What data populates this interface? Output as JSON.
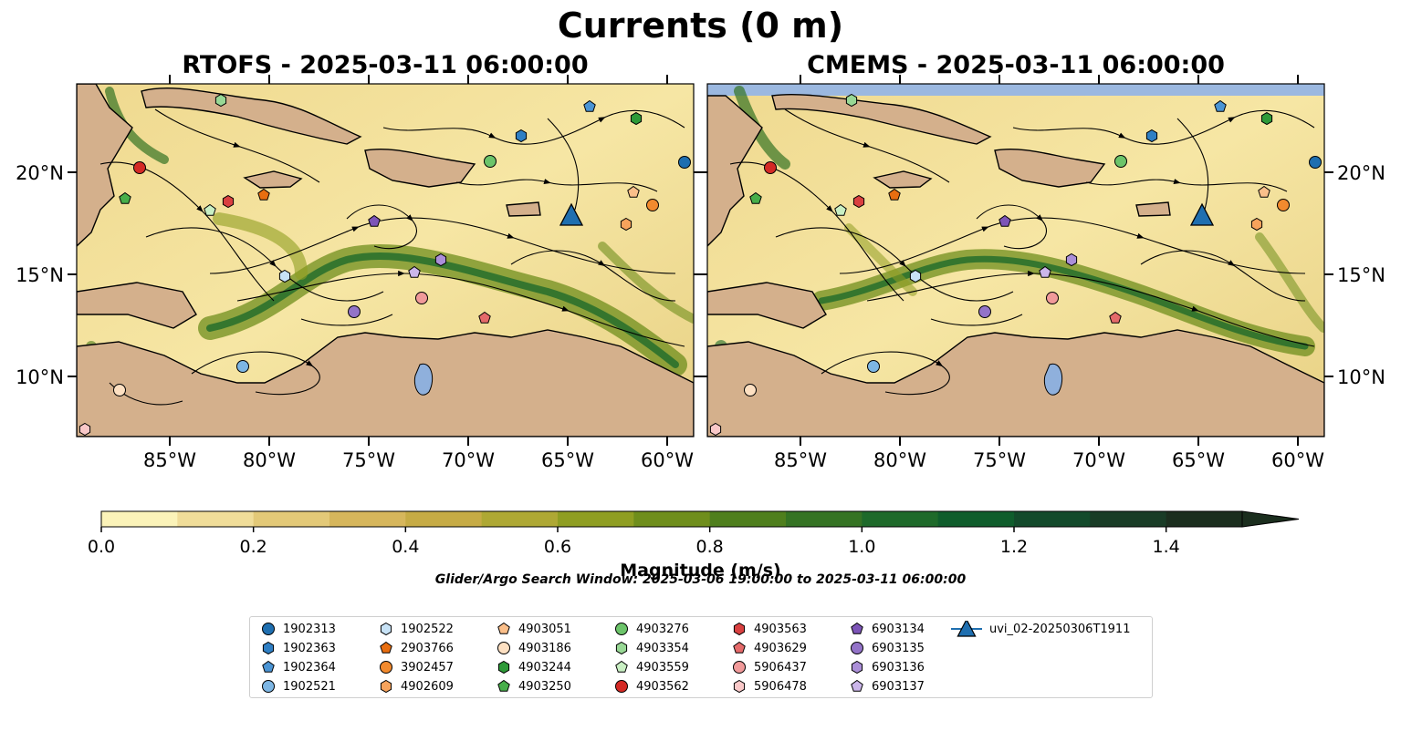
{
  "title": "Currents (0 m)",
  "panels": [
    {
      "title": "RTOFS - 2025-03-11 06:00:00"
    },
    {
      "title": "CMEMS - 2025-03-11 06:00:00"
    }
  ],
  "axes": {
    "lon_labels": [
      "85°W",
      "80°W",
      "75°W",
      "70°W",
      "65°W",
      "60°W"
    ],
    "lat_labels": [
      "20°N",
      "15°N",
      "10°N"
    ]
  },
  "colorbar": {
    "label": "Magnitude (m/s)",
    "ticks": [
      "0.0",
      "0.2",
      "0.4",
      "0.6",
      "0.8",
      "1.0",
      "1.2",
      "1.4"
    ],
    "range": [
      0,
      1.5
    ],
    "colors": [
      "#fbf3b9",
      "#f0dd99",
      "#e3c978",
      "#d6b65c",
      "#c6ab45",
      "#aea834",
      "#8f9e22",
      "#6f8e1c",
      "#4f7f1d",
      "#357323",
      "#1e6a2a",
      "#0f5d2c",
      "#134a2b",
      "#193c26",
      "#1b2e1e"
    ]
  },
  "search_window": "Glider/Argo Search Window: 2025-03-06 19:00:00 to 2025-03-11 06:00:00",
  "legend": [
    {
      "id": "1902313",
      "marker": "circle",
      "color": "#1f6fb0"
    },
    {
      "id": "1902363",
      "marker": "hexagon",
      "color": "#2f7fc4"
    },
    {
      "id": "1902364",
      "marker": "pentagon",
      "color": "#4a94d4"
    },
    {
      "id": "1902521",
      "marker": "circle",
      "color": "#7db6e4"
    },
    {
      "id": "1902522",
      "marker": "hexagon",
      "color": "#c7e2f6"
    },
    {
      "id": "2903766",
      "marker": "pentagon",
      "color": "#e86e10"
    },
    {
      "id": "3902457",
      "marker": "circle",
      "color": "#f28a2e"
    },
    {
      "id": "4902609",
      "marker": "hexagon",
      "color": "#f7a35c"
    },
    {
      "id": "4903051",
      "marker": "pentagon",
      "color": "#fbbf8a"
    },
    {
      "id": "4903186",
      "marker": "circle",
      "color": "#fde0c2"
    },
    {
      "id": "4903244",
      "marker": "hexagon",
      "color": "#2e9a38"
    },
    {
      "id": "4903250",
      "marker": "pentagon",
      "color": "#47ae4a"
    },
    {
      "id": "4903276",
      "marker": "circle",
      "color": "#6cc46a"
    },
    {
      "id": "4903354",
      "marker": "hexagon",
      "color": "#98d895"
    },
    {
      "id": "4903559",
      "marker": "pentagon",
      "color": "#c9efc3"
    },
    {
      "id": "4903562",
      "marker": "circle",
      "color": "#d42a25"
    },
    {
      "id": "4903563",
      "marker": "hexagon",
      "color": "#d94040"
    },
    {
      "id": "4903629",
      "marker": "pentagon",
      "color": "#e56a6a"
    },
    {
      "id": "5906437",
      "marker": "circle",
      "color": "#f19a9a"
    },
    {
      "id": "5906478",
      "marker": "hexagon",
      "color": "#f9c8c8"
    },
    {
      "id": "6903134",
      "marker": "pentagon",
      "color": "#7d55b8"
    },
    {
      "id": "6903135",
      "marker": "circle",
      "color": "#9373c8"
    },
    {
      "id": "6903136",
      "marker": "hexagon",
      "color": "#ab8fd8"
    },
    {
      "id": "6903137",
      "marker": "pentagon",
      "color": "#cbb6ea"
    },
    {
      "id": "uvi_02-20250306T1911",
      "marker": "triangle-line",
      "color": "#1f6fb0"
    }
  ]
}
